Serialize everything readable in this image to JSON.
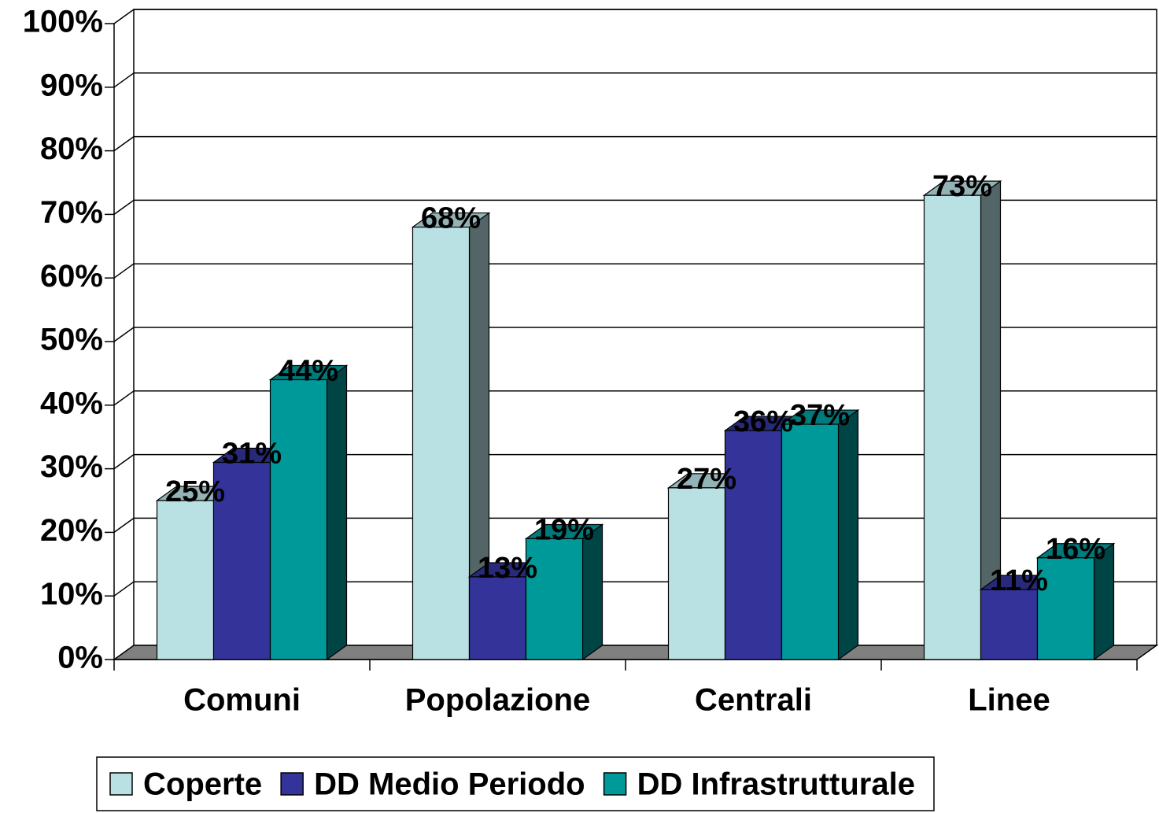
{
  "chart_data": {
    "type": "bar3d",
    "categories": [
      "Comuni",
      "Popolazione",
      "Centrali",
      "Linee"
    ],
    "series": [
      {
        "name": "Coperte",
        "color": "#b9e0e3",
        "values": [
          25,
          68,
          27,
          73
        ],
        "value_labels": [
          "25%",
          "68%",
          "27%",
          "73%"
        ]
      },
      {
        "name": "DD Medio Periodo",
        "color": "#333399",
        "values": [
          31,
          13,
          36,
          11
        ],
        "value_labels": [
          "31%",
          "13%",
          "36%",
          "11%"
        ]
      },
      {
        "name": "DD Infrastrutturale",
        "color": "#009999",
        "values": [
          44,
          19,
          37,
          16
        ],
        "value_labels": [
          "44%",
          "19%",
          "37%",
          "16%"
        ]
      }
    ],
    "ylim": [
      0,
      100
    ],
    "yticks": [
      {
        "value": 0,
        "label": "0%"
      },
      {
        "value": 10,
        "label": "10%"
      },
      {
        "value": 20,
        "label": "20%"
      },
      {
        "value": 30,
        "label": "30%"
      },
      {
        "value": 40,
        "label": "40%"
      },
      {
        "value": 50,
        "label": "50%"
      },
      {
        "value": 60,
        "label": "60%"
      },
      {
        "value": 70,
        "label": "70%"
      },
      {
        "value": 80,
        "label": "80%"
      },
      {
        "value": 90,
        "label": "90%"
      },
      {
        "value": 100,
        "label": "100%"
      }
    ],
    "grid": true,
    "legend": "bottom"
  }
}
